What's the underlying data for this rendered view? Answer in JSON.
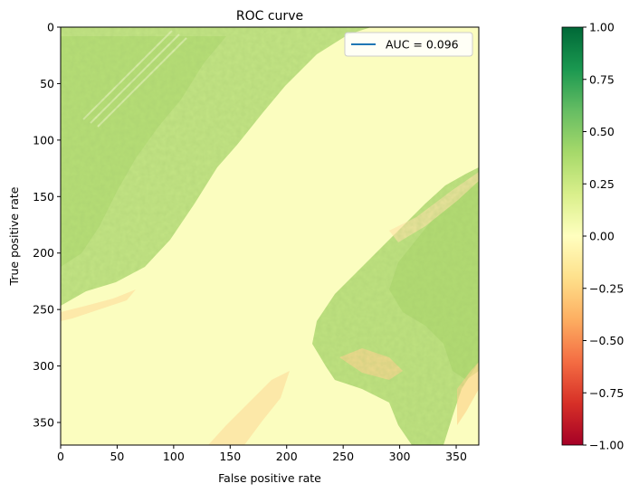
{
  "chart_data": {
    "type": "heatmap",
    "title": "ROC curve",
    "xlabel": "False positive rate",
    "ylabel": "True positive rate",
    "xlim": [
      0,
      370
    ],
    "ylim": [
      370,
      0
    ],
    "x_ticks": [
      0,
      50,
      100,
      150,
      200,
      250,
      300,
      350
    ],
    "y_ticks": [
      0,
      50,
      100,
      150,
      200,
      250,
      300,
      350
    ],
    "legend": {
      "placement": "top-right",
      "entries": [
        {
          "label": "AUC = 0.096",
          "color": "#1f77b4"
        }
      ]
    },
    "colorbar": {
      "colormap": "RdYlGn",
      "range": [
        -1.0,
        1.0
      ],
      "ticks": [
        -1.0,
        -0.75,
        -0.5,
        -0.25,
        0.0,
        0.25,
        0.5,
        0.75,
        1.0
      ],
      "tick_labels": [
        "−1.00",
        "−0.75",
        "−0.50",
        "−0.25",
        "0.00",
        "0.25",
        "0.50",
        "0.75",
        "1.00"
      ]
    },
    "field_summary": {
      "water_channel_value": 0.02,
      "vegetation_value": 0.35,
      "sediment_value": -0.12
    }
  }
}
